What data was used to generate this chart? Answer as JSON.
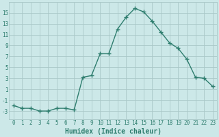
{
  "x": [
    0,
    1,
    2,
    3,
    4,
    5,
    6,
    7,
    8,
    9,
    10,
    11,
    12,
    13,
    14,
    15,
    16,
    17,
    18,
    19,
    20,
    21,
    22,
    23
  ],
  "y": [
    -2.0,
    -2.5,
    -2.5,
    -3.0,
    -3.0,
    -2.5,
    -2.5,
    -2.8,
    3.2,
    3.5,
    7.5,
    7.5,
    12.0,
    14.2,
    15.8,
    15.2,
    13.5,
    11.5,
    9.5,
    8.5,
    6.5,
    3.2,
    3.0,
    1.5
  ],
  "line_color": "#2e7d6e",
  "marker": "+",
  "marker_size": 4,
  "line_width": 1.0,
  "bg_color": "#cce8e8",
  "grid_color": "#aac8c8",
  "xlabel": "Humidex (Indice chaleur)",
  "ylim": [
    -4.5,
    17.0
  ],
  "xlim": [
    -0.5,
    23.5
  ],
  "yticks": [
    -3,
    -1,
    1,
    3,
    5,
    7,
    9,
    11,
    13,
    15
  ],
  "xticks": [
    0,
    1,
    2,
    3,
    4,
    5,
    6,
    7,
    8,
    9,
    10,
    11,
    12,
    13,
    14,
    15,
    16,
    17,
    18,
    19,
    20,
    21,
    22,
    23
  ],
  "tick_fontsize": 5.5,
  "xlabel_fontsize": 7.0
}
